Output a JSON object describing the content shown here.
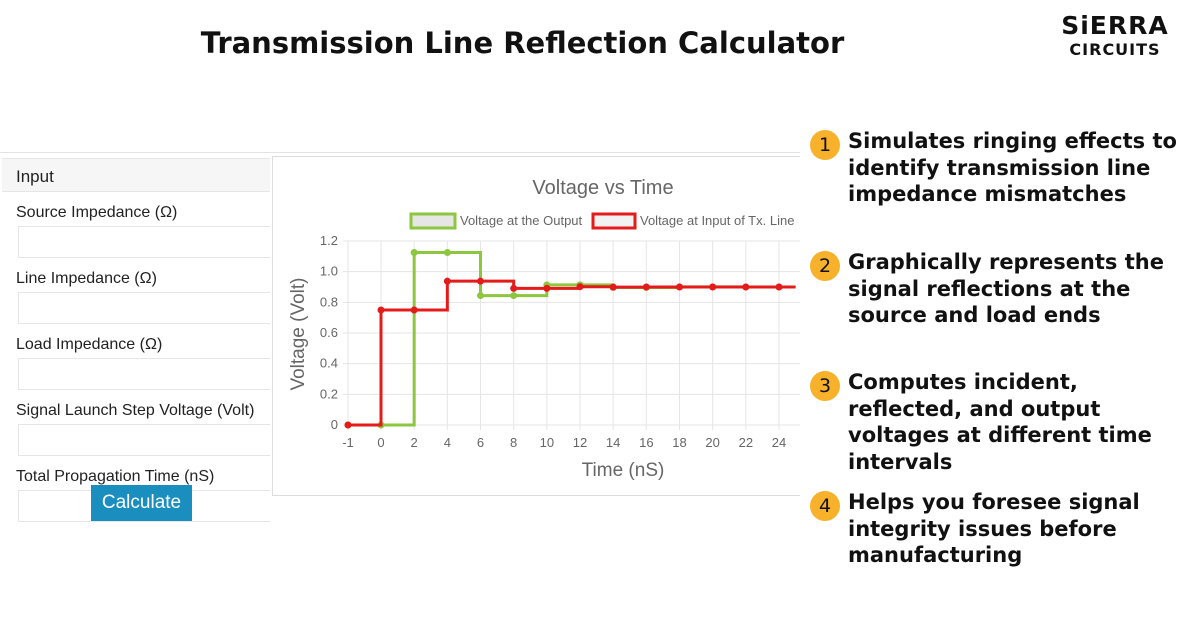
{
  "header": {
    "title": "Transmission Line Reflection Calculator",
    "logo_main": "SiERRA",
    "logo_sub": "CIRCUITS"
  },
  "input_panel": {
    "heading": "Input",
    "fields": [
      {
        "label": "Source Impedance (Ω)",
        "value": ""
      },
      {
        "label": "Line Impedance (Ω)",
        "value": ""
      },
      {
        "label": "Load Impedance (Ω)",
        "value": ""
      },
      {
        "label": "Signal Launch Step Voltage (Volt)",
        "value": ""
      },
      {
        "label": "Total Propagation Time (nS)",
        "value": ""
      }
    ],
    "calculate_label": "Calculate"
  },
  "chart_data": {
    "type": "line",
    "title": "Voltage vs Time",
    "xlabel": "Time (nS)",
    "ylabel": "Voltage (Volt)",
    "x_ticks": [
      -1,
      0,
      2,
      4,
      6,
      8,
      10,
      12,
      14,
      16,
      18,
      20,
      22,
      24
    ],
    "y_ticks": [
      0,
      0.2,
      0.4,
      0.6,
      0.8,
      1.0,
      1.2
    ],
    "y_tick_labels": [
      "0",
      "0.2",
      "0.4",
      "0.6",
      "0.8",
      "1.0",
      "1.2"
    ],
    "ylim": [
      0,
      1.2
    ],
    "grid": true,
    "legend_position": "top",
    "stepped": true,
    "series": [
      {
        "name": "Voltage at the Output",
        "color": "#8dc63f",
        "fill": "#e6e6e6",
        "points": [
          [
            -1,
            0
          ],
          [
            0,
            0
          ],
          [
            2,
            1.125
          ],
          [
            4,
            1.125
          ],
          [
            6,
            0.844
          ],
          [
            8,
            0.844
          ],
          [
            10,
            0.914
          ],
          [
            12,
            0.914
          ],
          [
            14,
            0.897
          ],
          [
            16,
            0.897
          ],
          [
            18,
            0.901
          ],
          [
            20,
            0.901
          ],
          [
            22,
            0.9
          ],
          [
            24,
            0.9
          ]
        ],
        "extend_to": 25
      },
      {
        "name": "Voltage at Input of Tx. Line",
        "color": "#e31b1b",
        "fill": "#f2f2f2",
        "points": [
          [
            -1,
            0
          ],
          [
            0,
            0.75
          ],
          [
            2,
            0.75
          ],
          [
            4,
            0.938
          ],
          [
            6,
            0.938
          ],
          [
            8,
            0.891
          ],
          [
            10,
            0.891
          ],
          [
            12,
            0.902
          ],
          [
            14,
            0.899
          ],
          [
            16,
            0.9
          ],
          [
            18,
            0.9
          ],
          [
            20,
            0.9
          ],
          [
            22,
            0.9
          ],
          [
            24,
            0.9
          ]
        ],
        "extend_to": 25
      }
    ]
  },
  "features": [
    {
      "number": "1",
      "text": "Simulates ringing effects to identify transmission line impedance mismatches"
    },
    {
      "number": "2",
      "text": "Graphically represents the signal reflections at the source and load ends"
    },
    {
      "number": "3",
      "text": "Computes incident, reflected, and output voltages at different time intervals"
    },
    {
      "number": "4",
      "text": "Helps you foresee signal integrity issues before manufacturing"
    }
  ]
}
